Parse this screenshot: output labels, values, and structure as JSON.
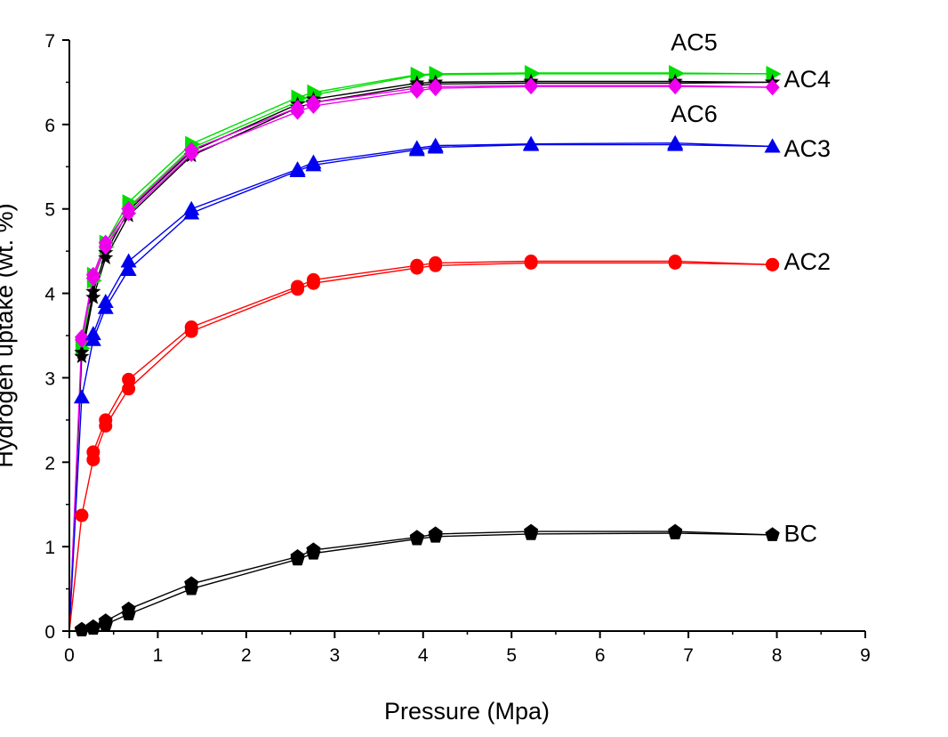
{
  "chart_data": {
    "type": "line",
    "title": "",
    "xlabel": "Pressure (Mpa)",
    "ylabel": "Hydrogen uptake (wt. %)",
    "xlim": [
      0,
      9
    ],
    "ylim": [
      0,
      7
    ],
    "xticks": [
      0,
      1,
      2,
      3,
      4,
      5,
      6,
      7,
      8,
      9
    ],
    "yticks": [
      0,
      1,
      2,
      3,
      4,
      5,
      6,
      7
    ],
    "grid": false,
    "legend": "none",
    "series": [
      {
        "name": "AC5",
        "color": "#00dd00",
        "marker": "triangle-right",
        "adsorption": [
          [
            0,
            0
          ],
          [
            0.14,
            3.35
          ],
          [
            0.27,
            4.15
          ],
          [
            0.41,
            4.55
          ],
          [
            0.67,
            5.02
          ],
          [
            1.38,
            5.72
          ],
          [
            2.58,
            6.27
          ],
          [
            2.76,
            6.35
          ],
          [
            3.93,
            6.58
          ],
          [
            4.14,
            6.59
          ],
          [
            5.22,
            6.6
          ],
          [
            6.85,
            6.6
          ],
          [
            7.95,
            6.6
          ]
        ],
        "desorption": [
          [
            7.95,
            6.6
          ],
          [
            6.85,
            6.61
          ],
          [
            5.22,
            6.61
          ],
          [
            4.14,
            6.6
          ],
          [
            3.93,
            6.59
          ],
          [
            2.76,
            6.38
          ],
          [
            2.58,
            6.32
          ],
          [
            1.38,
            5.77
          ],
          [
            0.67,
            5.08
          ],
          [
            0.41,
            4.6
          ],
          [
            0.27,
            4.22
          ],
          [
            0.14,
            3.4
          ]
        ]
      },
      {
        "name": "AC4",
        "color": "#000000",
        "marker": "star",
        "adsorption": [
          [
            0,
            0
          ],
          [
            0.14,
            3.25
          ],
          [
            0.27,
            3.95
          ],
          [
            0.41,
            4.42
          ],
          [
            0.67,
            4.92
          ],
          [
            1.38,
            5.63
          ],
          [
            2.58,
            6.2
          ],
          [
            2.76,
            6.26
          ],
          [
            3.93,
            6.46
          ],
          [
            4.14,
            6.48
          ],
          [
            5.22,
            6.49
          ],
          [
            6.85,
            6.49
          ],
          [
            7.95,
            6.5
          ]
        ],
        "desorption": [
          [
            7.95,
            6.5
          ],
          [
            6.85,
            6.51
          ],
          [
            5.22,
            6.51
          ],
          [
            4.14,
            6.5
          ],
          [
            3.93,
            6.49
          ],
          [
            2.76,
            6.3
          ],
          [
            2.58,
            6.24
          ],
          [
            1.38,
            5.68
          ],
          [
            0.67,
            4.98
          ],
          [
            0.41,
            4.48
          ],
          [
            0.27,
            4.02
          ],
          [
            0.14,
            3.3
          ]
        ]
      },
      {
        "name": "AC6",
        "color": "#ee00ee",
        "marker": "diamond",
        "adsorption": [
          [
            0,
            0
          ],
          [
            0.14,
            3.45
          ],
          [
            0.27,
            4.18
          ],
          [
            0.41,
            4.55
          ],
          [
            0.67,
            4.95
          ],
          [
            1.38,
            5.65
          ],
          [
            2.58,
            6.15
          ],
          [
            2.76,
            6.22
          ],
          [
            3.93,
            6.4
          ],
          [
            4.14,
            6.43
          ],
          [
            5.22,
            6.45
          ],
          [
            6.85,
            6.45
          ],
          [
            7.95,
            6.44
          ]
        ],
        "desorption": [
          [
            7.95,
            6.44
          ],
          [
            6.85,
            6.46
          ],
          [
            5.22,
            6.46
          ],
          [
            4.14,
            6.45
          ],
          [
            3.93,
            6.43
          ],
          [
            2.76,
            6.26
          ],
          [
            2.58,
            6.2
          ],
          [
            1.38,
            5.7
          ],
          [
            0.67,
            5.0
          ],
          [
            0.41,
            4.6
          ],
          [
            0.27,
            4.22
          ],
          [
            0.14,
            3.48
          ]
        ]
      },
      {
        "name": "AC3",
        "color": "#0000ee",
        "marker": "triangle-up",
        "adsorption": [
          [
            0,
            0
          ],
          [
            0.14,
            2.77
          ],
          [
            0.27,
            3.45
          ],
          [
            0.41,
            3.83
          ],
          [
            0.67,
            4.28
          ],
          [
            1.38,
            4.95
          ],
          [
            2.58,
            5.45
          ],
          [
            2.76,
            5.52
          ],
          [
            3.93,
            5.7
          ],
          [
            4.14,
            5.73
          ],
          [
            5.22,
            5.76
          ],
          [
            6.85,
            5.76
          ],
          [
            7.95,
            5.74
          ]
        ],
        "desorption": [
          [
            7.95,
            5.74
          ],
          [
            6.85,
            5.78
          ],
          [
            5.22,
            5.77
          ],
          [
            4.14,
            5.75
          ],
          [
            3.93,
            5.72
          ],
          [
            2.76,
            5.55
          ],
          [
            2.58,
            5.47
          ],
          [
            1.38,
            5.0
          ],
          [
            0.67,
            4.38
          ],
          [
            0.41,
            3.9
          ],
          [
            0.27,
            3.52
          ]
        ]
      },
      {
        "name": "AC2",
        "color": "#ff0000",
        "marker": "circle",
        "adsorption": [
          [
            0,
            0
          ],
          [
            0.14,
            1.37
          ],
          [
            0.27,
            2.03
          ],
          [
            0.41,
            2.43
          ],
          [
            0.67,
            2.87
          ],
          [
            1.38,
            3.55
          ],
          [
            2.58,
            4.05
          ],
          [
            2.76,
            4.12
          ],
          [
            3.93,
            4.3
          ],
          [
            4.14,
            4.33
          ],
          [
            5.22,
            4.36
          ],
          [
            6.85,
            4.36
          ],
          [
            7.95,
            4.34
          ]
        ],
        "desorption": [
          [
            7.95,
            4.34
          ],
          [
            6.85,
            4.38
          ],
          [
            5.22,
            4.38
          ],
          [
            4.14,
            4.36
          ],
          [
            3.93,
            4.33
          ],
          [
            2.76,
            4.16
          ],
          [
            2.58,
            4.08
          ],
          [
            1.38,
            3.6
          ],
          [
            0.67,
            2.98
          ],
          [
            0.41,
            2.5
          ],
          [
            0.27,
            2.12
          ]
        ]
      },
      {
        "name": "BC",
        "color": "#000000",
        "marker": "pentagon",
        "adsorption": [
          [
            0,
            0
          ],
          [
            0.14,
            0.01
          ],
          [
            0.27,
            0.03
          ],
          [
            0.41,
            0.08
          ],
          [
            0.67,
            0.2
          ],
          [
            1.38,
            0.5
          ],
          [
            2.58,
            0.85
          ],
          [
            2.76,
            0.92
          ],
          [
            3.93,
            1.09
          ],
          [
            4.14,
            1.12
          ],
          [
            5.22,
            1.15
          ],
          [
            6.85,
            1.16
          ],
          [
            7.95,
            1.14
          ]
        ],
        "desorption": [
          [
            7.95,
            1.14
          ],
          [
            6.85,
            1.18
          ],
          [
            5.22,
            1.18
          ],
          [
            4.14,
            1.15
          ],
          [
            3.93,
            1.11
          ],
          [
            2.76,
            0.96
          ],
          [
            2.58,
            0.88
          ],
          [
            1.38,
            0.56
          ],
          [
            0.67,
            0.26
          ],
          [
            0.41,
            0.12
          ],
          [
            0.27,
            0.05
          ],
          [
            0.14,
            0.02
          ]
        ]
      }
    ],
    "annotations": [
      {
        "series": "AC5",
        "text": "AC5",
        "x": 6.8,
        "y": 6.88
      },
      {
        "series": "AC4",
        "text": "AC4",
        "x": 8.08,
        "y": 6.44
      },
      {
        "series": "AC6",
        "text": "AC6",
        "x": 6.8,
        "y": 6.03
      },
      {
        "series": "AC3",
        "text": "AC3",
        "x": 8.08,
        "y": 5.62
      },
      {
        "series": "AC2",
        "text": "AC2",
        "x": 8.08,
        "y": 4.28
      },
      {
        "series": "BC",
        "text": "BC",
        "x": 8.08,
        "y": 1.06
      }
    ]
  }
}
